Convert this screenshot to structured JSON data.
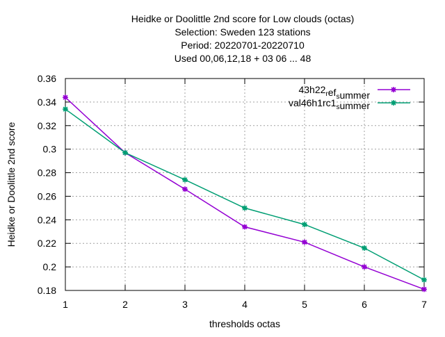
{
  "chart_data": {
    "type": "line",
    "title_lines": [
      "Heidke or Doolittle 2nd score  for Low clouds (octas)",
      "Selection: Sweden    123 stations",
      "Period: 20220701-20220710",
      "Used  00,06,12,18  + 03 06 ... 48"
    ],
    "xlabel": "thresholds octas",
    "ylabel": "Heidke or Doolittle 2nd score",
    "x": [
      1,
      2,
      3,
      4,
      5,
      6,
      7
    ],
    "xlim": [
      1,
      7
    ],
    "ylim": [
      0.18,
      0.36
    ],
    "xticks": [
      "1",
      "2",
      "3",
      "4",
      "5",
      "6",
      "7"
    ],
    "yticks": [
      "0.18",
      "0.2",
      "0.22",
      "0.24",
      "0.26",
      "0.28",
      "0.3",
      "0.32",
      "0.34",
      "0.36"
    ],
    "grid": true,
    "legend_position": "top-right",
    "series": [
      {
        "name": "43h22_ref_summer",
        "legend_parts": [
          {
            "text": "43h22",
            "sub": false
          },
          {
            "text": "r",
            "sub": true
          },
          {
            "text": "ef",
            "sub": false
          },
          {
            "text": "s",
            "sub": true
          },
          {
            "text": "ummer",
            "sub": false
          }
        ],
        "color": "#9400d3",
        "values": [
          0.344,
          0.297,
          0.266,
          0.234,
          0.221,
          0.2,
          0.181
        ]
      },
      {
        "name": "val46h1rc1_summer",
        "legend_parts": [
          {
            "text": "val46h1rc1",
            "sub": false
          },
          {
            "text": "s",
            "sub": true
          },
          {
            "text": "ummer",
            "sub": false
          }
        ],
        "color": "#009e73",
        "values": [
          0.334,
          0.297,
          0.274,
          0.25,
          0.236,
          0.216,
          0.189
        ]
      }
    ]
  }
}
